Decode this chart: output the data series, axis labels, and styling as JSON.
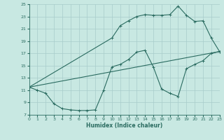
{
  "xlabel": "Humidex (Indice chaleur)",
  "bg_color": "#c8e8e2",
  "grid_color": "#a8ccca",
  "line_color": "#2a6b60",
  "xlim": [
    0,
    23
  ],
  "ylim": [
    7,
    25
  ],
  "xticks": [
    0,
    1,
    2,
    3,
    4,
    5,
    6,
    7,
    8,
    9,
    10,
    11,
    12,
    13,
    14,
    15,
    16,
    17,
    18,
    19,
    20,
    21,
    22,
    23
  ],
  "yticks": [
    7,
    9,
    11,
    13,
    15,
    17,
    19,
    21,
    23,
    25
  ],
  "curve1_x": [
    0,
    1,
    2,
    3,
    4,
    5,
    6,
    7,
    8,
    9,
    10,
    11,
    12,
    13,
    14,
    15,
    16,
    17,
    18,
    19,
    20,
    21,
    22,
    23
  ],
  "curve1_y": [
    11.5,
    11.0,
    10.5,
    8.8,
    8.0,
    7.8,
    7.7,
    7.7,
    7.8,
    11.0,
    14.8,
    15.2,
    16.0,
    17.2,
    17.5,
    14.8,
    11.2,
    10.5,
    10.0,
    14.5,
    15.2,
    15.8,
    17.0,
    17.3
  ],
  "curve2_x": [
    0,
    10,
    11,
    12,
    13,
    14,
    15,
    16,
    17,
    18,
    19,
    20,
    21,
    22,
    23
  ],
  "curve2_y": [
    11.5,
    19.5,
    21.5,
    22.3,
    23.0,
    23.3,
    23.2,
    23.2,
    23.3,
    24.7,
    23.2,
    22.2,
    22.3,
    19.5,
    17.3
  ],
  "curve3_x": [
    0,
    23
  ],
  "curve3_y": [
    11.5,
    17.3
  ]
}
